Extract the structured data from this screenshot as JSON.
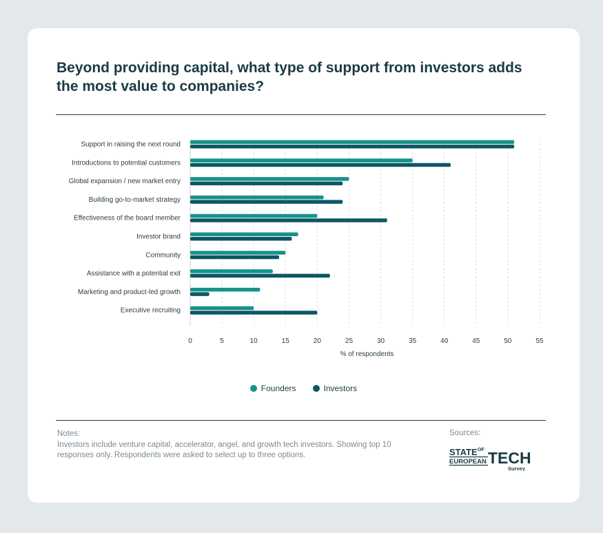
{
  "title": "Beyond providing capital, what type of support from investors adds the most value to companies?",
  "colors": {
    "founders": "#16928c",
    "investors": "#0d5764",
    "text": "#1a3a44"
  },
  "chart_data": {
    "type": "bar",
    "orientation": "horizontal",
    "categories": [
      "Support in raising the next round",
      "Introductions to potential customers",
      "Global expansion / new market entry",
      "Building go-to-market strategy",
      "Effectiveness of the board member",
      "Investor brand",
      "Community",
      "Assistance with a potential exit",
      "Marketing and product-led growth",
      "Executive recruiting"
    ],
    "series": [
      {
        "name": "Founders",
        "values": [
          51,
          35,
          25,
          21,
          20,
          17,
          15,
          13,
          11,
          10
        ]
      },
      {
        "name": "Investors",
        "values": [
          51,
          41,
          24,
          24,
          31,
          16,
          14,
          22,
          3,
          20
        ]
      }
    ],
    "xticks": [
      0,
      5,
      10,
      15,
      20,
      25,
      30,
      35,
      40,
      45,
      50,
      55
    ],
    "xlim": [
      0,
      55
    ],
    "xlabel": "% of respondents",
    "ylabel": "",
    "grid": "vertical dashed",
    "legend": "bottom-center"
  },
  "legend": {
    "founders": "Founders",
    "investors": "Investors"
  },
  "notes": {
    "label": "Notes:",
    "text": "Investors include venture capital, accelerator, angel, and growth tech investors. Showing top 10 responses only. Respondents were asked to select up to three options."
  },
  "sources": {
    "label": "Sources:",
    "logo_line1": "STATE",
    "logo_of": "OF",
    "logo_line2": "EUROPEAN",
    "logo_tech": "TECH",
    "logo_survey": "Survey"
  }
}
